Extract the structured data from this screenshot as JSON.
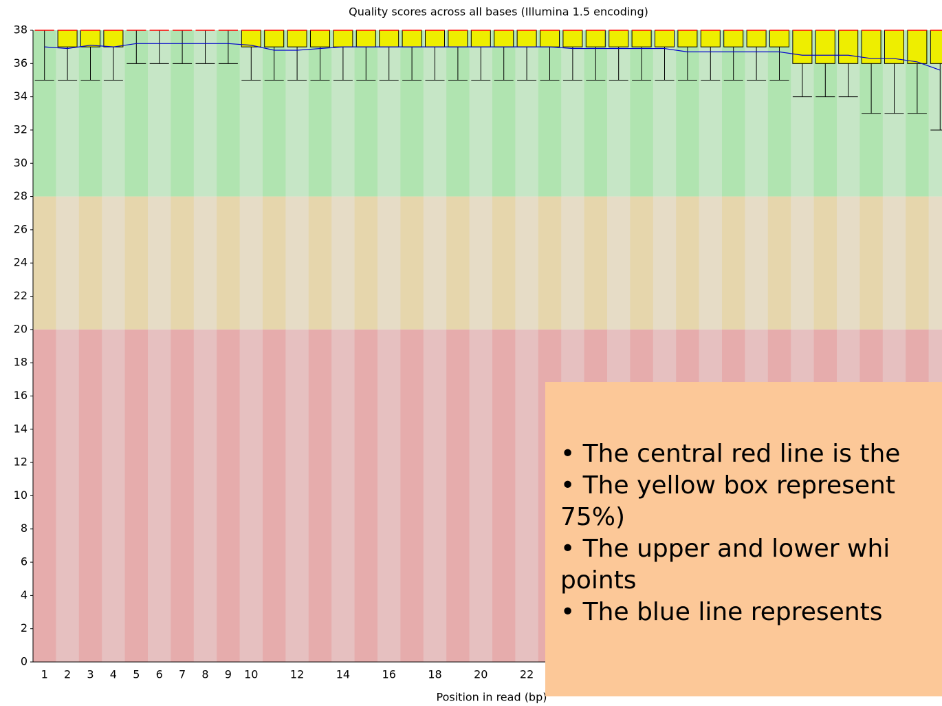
{
  "chart_data": {
    "type": "boxplot",
    "title": "Quality scores across all bases (Illumina 1.5 encoding)",
    "x_label": "Position in read (bp)",
    "categories": [
      1,
      2,
      3,
      4,
      5,
      6,
      7,
      8,
      9,
      10,
      null,
      12,
      null,
      14,
      null,
      16,
      null,
      18,
      null,
      20,
      null,
      22,
      null,
      null,
      null,
      null,
      null,
      null,
      null,
      null,
      null,
      null,
      null,
      null,
      null,
      null,
      null,
      null,
      null,
      null
    ],
    "whisker_low": [
      35,
      35,
      35,
      35,
      36,
      36,
      36,
      36,
      36,
      35,
      35,
      35,
      35,
      35,
      35,
      35,
      35,
      35,
      35,
      35,
      35,
      35,
      35,
      35,
      35,
      35,
      35,
      35,
      35,
      35,
      35,
      35,
      35,
      34,
      34,
      34,
      33,
      33,
      33,
      32
    ],
    "q1": [
      38,
      37,
      37,
      37,
      38,
      38,
      38,
      38,
      38,
      37,
      37,
      37,
      37,
      37,
      37,
      37,
      37,
      37,
      37,
      37,
      37,
      37,
      37,
      37,
      37,
      37,
      37,
      37,
      37,
      37,
      37,
      37,
      37,
      36,
      36,
      36,
      36,
      36,
      36,
      36
    ],
    "median": [
      38,
      38,
      38,
      38,
      38,
      38,
      38,
      38,
      38,
      38,
      38,
      38,
      38,
      38,
      38,
      38,
      38,
      38,
      38,
      38,
      38,
      38,
      38,
      38,
      38,
      38,
      38,
      38,
      38,
      38,
      38,
      38,
      38,
      38,
      38,
      38,
      38,
      38,
      38,
      38
    ],
    "q3": [
      38,
      38,
      38,
      38,
      38,
      38,
      38,
      38,
      38,
      38,
      38,
      38,
      38,
      38,
      38,
      38,
      38,
      38,
      38,
      38,
      38,
      38,
      38,
      38,
      38,
      38,
      38,
      38,
      38,
      38,
      38,
      38,
      38,
      38,
      38,
      38,
      38,
      38,
      38,
      38
    ],
    "whisker_high": [
      38,
      38,
      38,
      38,
      38,
      38,
      38,
      38,
      38,
      38,
      38,
      38,
      38,
      38,
      38,
      38,
      38,
      38,
      38,
      38,
      38,
      38,
      38,
      38,
      38,
      38,
      38,
      38,
      38,
      38,
      38,
      38,
      38,
      38,
      38,
      38,
      38,
      38,
      38,
      38
    ],
    "mean": [
      37.0,
      36.9,
      37.1,
      37.0,
      37.2,
      37.2,
      37.2,
      37.2,
      37.2,
      37.1,
      36.8,
      36.8,
      36.9,
      37.0,
      37.0,
      37.0,
      37.0,
      37.0,
      37.0,
      37.0,
      37.0,
      37.0,
      37.0,
      36.9,
      36.9,
      36.9,
      36.9,
      36.9,
      36.7,
      36.7,
      36.7,
      36.7,
      36.7,
      36.5,
      36.5,
      36.5,
      36.3,
      36.3,
      36.1,
      35.6
    ],
    "box_color": "#eeee00",
    "median_color": "#ff0000",
    "mean_color": "#0000cc",
    "zones": [
      {
        "range": [
          28,
          38
        ],
        "colors": [
          "#b0e4b0",
          "#c6e6c6"
        ]
      },
      {
        "range": [
          20,
          28
        ],
        "colors": [
          "#e6d6ac",
          "#e6dcc6"
        ]
      },
      {
        "range": [
          0,
          20
        ],
        "colors": [
          "#e6acac",
          "#e6c0c0"
        ]
      }
    ],
    "ylim": [
      0,
      38
    ],
    "yticks": [
      0,
      2,
      4,
      6,
      8,
      10,
      12,
      14,
      16,
      18,
      20,
      22,
      24,
      26,
      28,
      30,
      32,
      34,
      36,
      38
    ]
  },
  "overlay": {
    "lines": [
      "• The central red line is the",
      "• The yellow box represent",
      "75%)",
      "• The upper and lower whi",
      "points",
      "• The blue line represents"
    ]
  }
}
